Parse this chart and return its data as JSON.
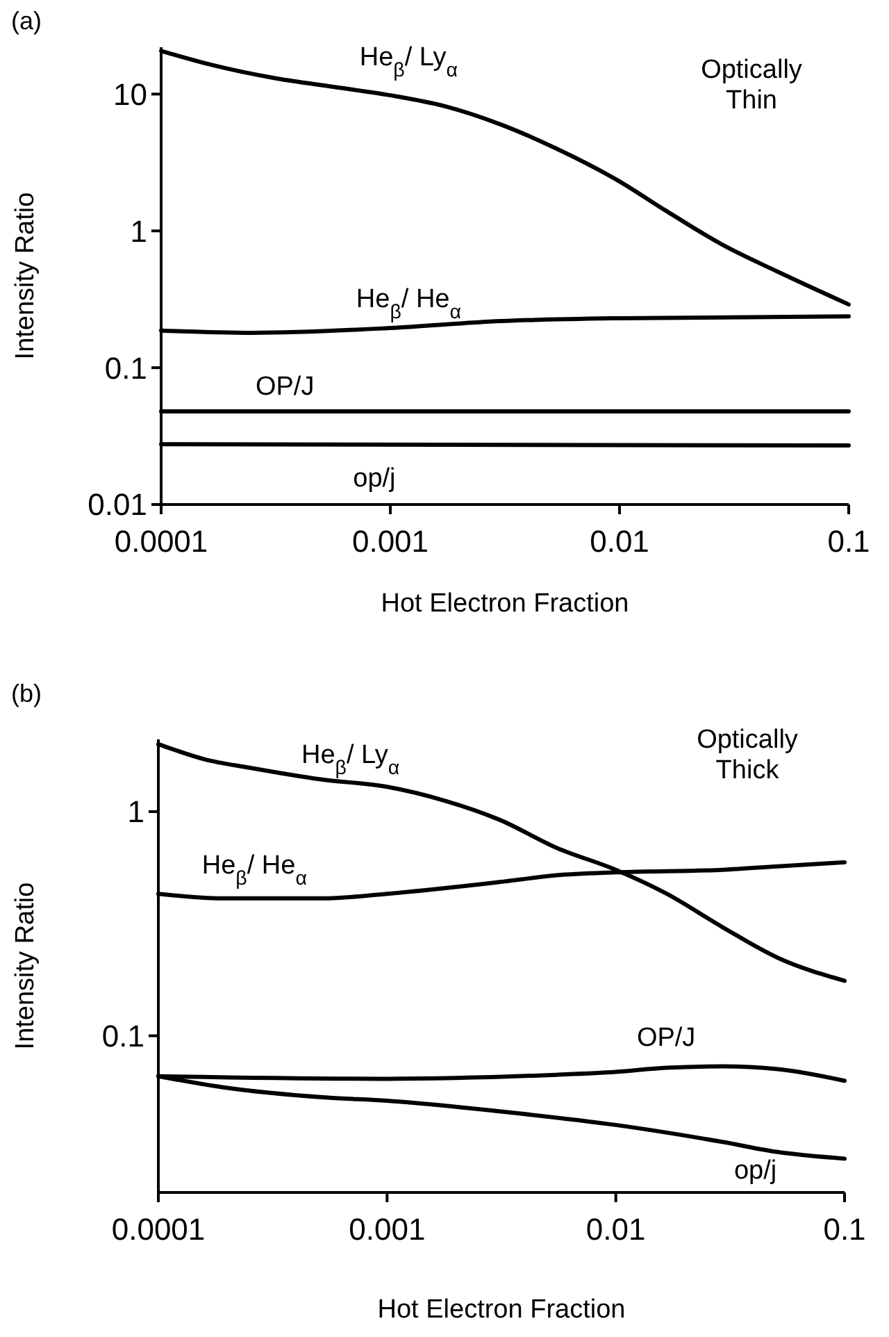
{
  "chart_data": [
    {
      "type": "line",
      "title": "(a)",
      "xlabel": "Hot Electron Fraction",
      "ylabel": "Intensity Ratio",
      "log": "xy",
      "xlim": [
        0.0001,
        0.1
      ],
      "xticks": [
        0.0001,
        0.001,
        0.01,
        0.1
      ],
      "ylim": [
        0.01,
        22
      ],
      "yticks": [
        0.01,
        0.1,
        1,
        10
      ],
      "grid": false,
      "legend": false,
      "marker": "none",
      "line_style": "solid",
      "annotations": [
        "Optically Thin"
      ],
      "series": [
        {
          "name": "He$_{β}$/ Ly$_{α}$",
          "color": "#000000",
          "x": [
            0.0001,
            0.000165,
            0.00032,
            0.000565,
            0.001,
            0.00173,
            0.00303,
            0.0053,
            0.01,
            0.0161,
            0.0282,
            0.0494,
            0.1
          ],
          "values": [
            20.7,
            16.4,
            13.0,
            11.3,
            9.8,
            8.15,
            6.0,
            4.0,
            2.3,
            1.39,
            0.79,
            0.5,
            0.29
          ]
        },
        {
          "name": "He$_{β}$/ He$_{α}$",
          "color": "#000000",
          "x": [
            0.0001,
            0.00025,
            0.001,
            0.00303,
            0.01,
            0.1
          ],
          "values": [
            0.187,
            0.18,
            0.195,
            0.219,
            0.23,
            0.237
          ]
        },
        {
          "name": "OP/J",
          "color": "#000000",
          "x": [
            0.0001,
            0.1
          ],
          "values": [
            0.048,
            0.048
          ]
        },
        {
          "name": "op/j",
          "color": "#000000",
          "x": [
            0.0001,
            0.1
          ],
          "values": [
            0.0276,
            0.027
          ]
        }
      ]
    },
    {
      "type": "line",
      "title": "(b)",
      "xlabel": "Hot Electron Fraction",
      "ylabel": "Intensity Ratio",
      "log": "xy",
      "xlim": [
        0.0001,
        0.1
      ],
      "xticks": [
        0.0001,
        0.001,
        0.01,
        0.1
      ],
      "ylim": [
        0.02,
        2.1
      ],
      "yticks": [
        0.1,
        1
      ],
      "grid": false,
      "legend": false,
      "marker": "none",
      "line_style": "solid",
      "annotations": [
        "Optically Thick"
      ],
      "series": [
        {
          "name": "He$_{β}$/ Ly$_{α}$",
          "color": "#000000",
          "x": [
            0.0001,
            0.00016,
            0.00025,
            0.00052,
            0.001,
            0.00178,
            0.0031,
            0.0055,
            0.01,
            0.0167,
            0.0293,
            0.051,
            0.1
          ],
          "values": [
            2.0,
            1.71,
            1.57,
            1.39,
            1.29,
            1.12,
            0.92,
            0.69,
            0.55,
            0.43,
            0.305,
            0.223,
            0.176
          ]
        },
        {
          "name": "He$_{β}$/ He$_{α}$",
          "color": "#000000",
          "x": [
            0.0001,
            0.00019,
            0.00052,
            0.001,
            0.0031,
            0.0055,
            0.01,
            0.0293,
            0.051,
            0.1
          ],
          "values": [
            0.43,
            0.41,
            0.41,
            0.43,
            0.485,
            0.52,
            0.536,
            0.55,
            0.57,
            0.594
          ]
        },
        {
          "name": "OP/J",
          "color": "#000000",
          "x": [
            0.0001,
            0.001,
            0.0055,
            0.01,
            0.0167,
            0.0293,
            0.051,
            0.1
          ],
          "values": [
            0.066,
            0.0643,
            0.067,
            0.069,
            0.072,
            0.073,
            0.071,
            0.063
          ]
        },
        {
          "name": "op/j",
          "color": "#000000",
          "x": [
            0.0001,
            0.00019,
            0.00055,
            0.001,
            0.0031,
            0.01,
            0.0293,
            0.051,
            0.1
          ],
          "values": [
            0.066,
            0.059,
            0.053,
            0.0513,
            0.046,
            0.04,
            0.0336,
            0.0303,
            0.0283
          ]
        }
      ]
    }
  ]
}
